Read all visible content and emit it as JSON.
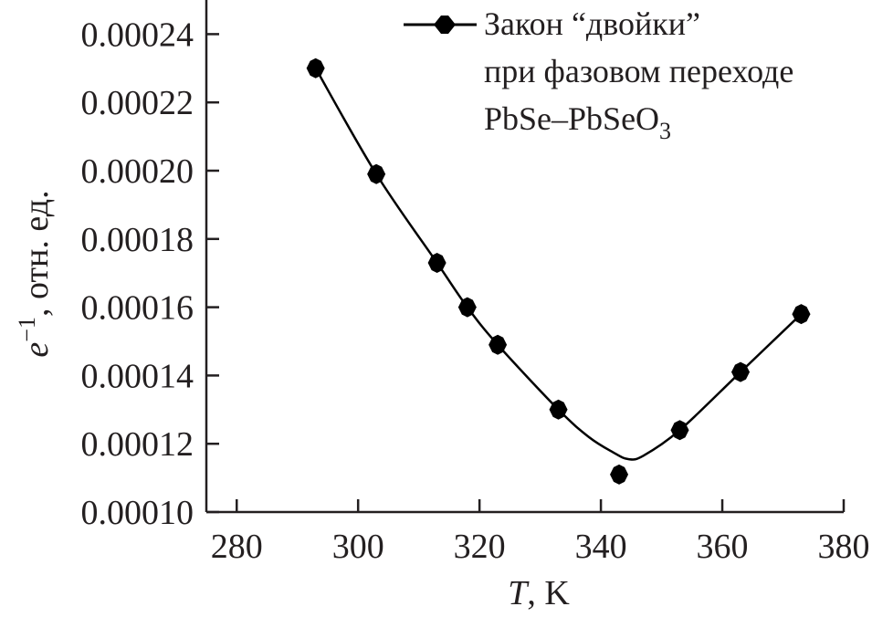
{
  "chart_data": {
    "type": "line",
    "xlabel": {
      "var": "T",
      "rest": ", K"
    },
    "ylabel": {
      "var": "e",
      "sup": "−1",
      "rest": ", отн. ед."
    },
    "xlim": [
      275,
      380
    ],
    "ylim": [
      0.0001,
      0.00025
    ],
    "x_ticks": [
      "280",
      "300",
      "320",
      "340",
      "360",
      "380"
    ],
    "y_ticks": [
      "0.00010",
      "0.00012",
      "0.00014",
      "0.00016",
      "0.00018",
      "0.00020",
      "0.00022",
      "0.00024"
    ],
    "grid": false,
    "legend_position": "top-right",
    "series": [
      {
        "name_lines": [
          "Закон “двойки”",
          "при фазовом переходе",
          "PbSe–PbSeO"
        ],
        "name_subscript": "3",
        "color": "#000000",
        "x": [
          293,
          303,
          313,
          318,
          323,
          333,
          343,
          353,
          363,
          373
        ],
        "y": [
          0.00023,
          0.000199,
          0.000173,
          0.00016,
          0.000149,
          0.00013,
          0.000111,
          0.000124,
          0.000141,
          0.000158
        ],
        "fit_curve": {
          "x": [
            293,
            303,
            313,
            318,
            323,
            333,
            338,
            342,
            344.5,
            347,
            353,
            363,
            373
          ],
          "y": [
            0.00023,
            0.000199,
            0.000173,
            0.00016,
            0.000149,
            0.00013,
            0.000122,
            0.0001175,
            0.0001155,
            0.0001165,
            0.000124,
            0.000141,
            0.000158
          ]
        }
      }
    ]
  }
}
